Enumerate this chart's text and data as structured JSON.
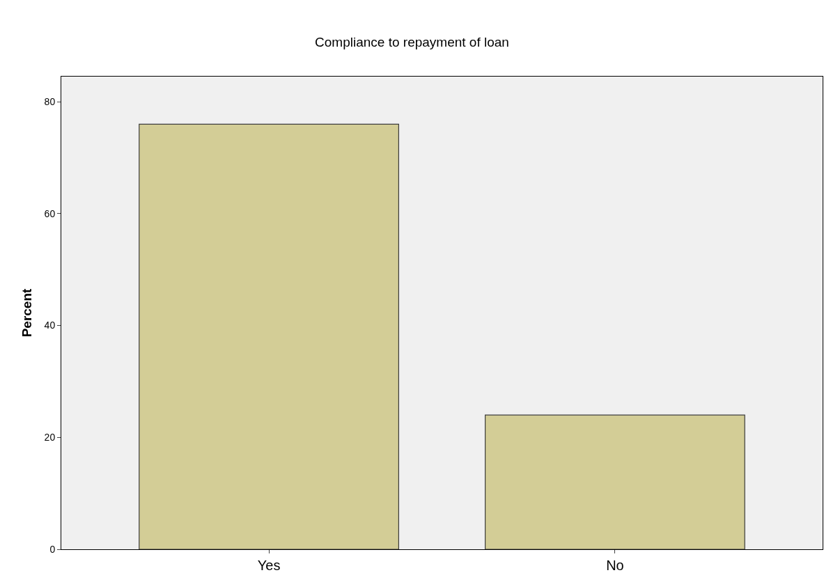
{
  "chart_data": {
    "type": "bar",
    "title": "Compliance to repayment of loan",
    "ylabel": "Percent",
    "categories": [
      "Yes",
      "No"
    ],
    "values": [
      76,
      24
    ],
    "color": "#d3cd96",
    "ylim": [
      0,
      84.5
    ],
    "yticks": [
      0,
      20,
      40,
      60,
      80
    ],
    "grid": false
  }
}
